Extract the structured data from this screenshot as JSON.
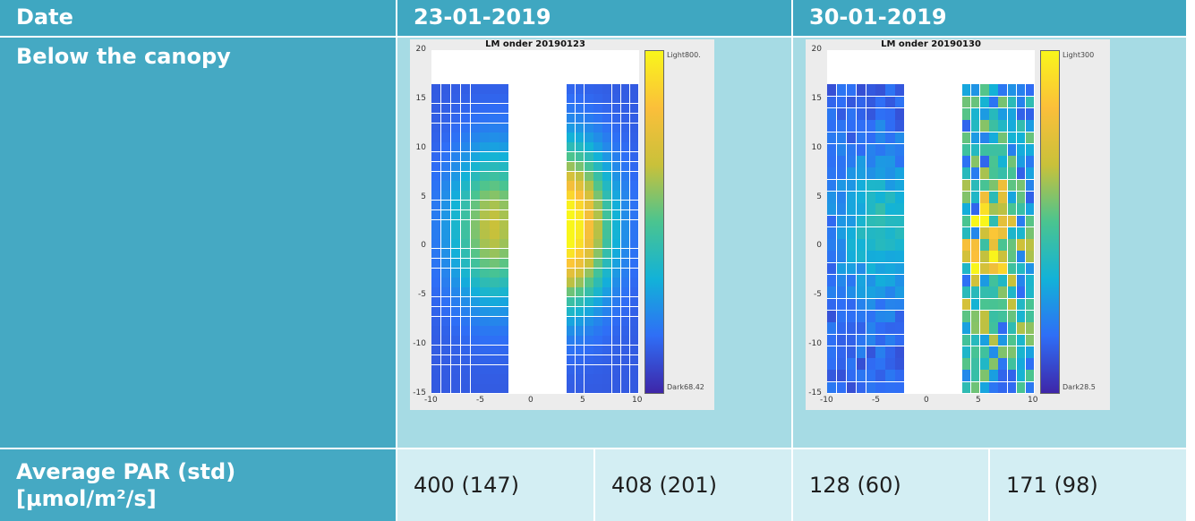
{
  "table": {
    "header": {
      "col0": "Date",
      "col1": "23-01-2019",
      "col2": "30-01-2019"
    },
    "row1_label": "Below the canopy",
    "row2_label_line1": "Average PAR (std)",
    "row2_label_line2": "[µmol/m²/s]",
    "values": [
      "400 (147)",
      "408 (201)",
      "128 (60)",
      "171 (98)"
    ]
  },
  "chart_data": [
    {
      "type": "heatmap",
      "title": "LM onder 20190123",
      "x_ticks": [
        "-10",
        "-5",
        "0",
        "5",
        "10"
      ],
      "y_ticks": [
        "20",
        "15",
        "10",
        "5",
        "0",
        "-5",
        "-10",
        "-15"
      ],
      "xlim": [
        -10,
        10
      ],
      "ylim": [
        -15,
        20
      ],
      "colorbar_top_label": "Light800.",
      "colorbar_bottom_label": "Dark68.42",
      "colormap": [
        "#3e26a8",
        "#2f6ef6",
        "#12b2d8",
        "#4ac490",
        "#c9c13a",
        "#fbbf3a",
        "#f9f61b"
      ],
      "blocks": [
        {
          "x_range": [
            -10,
            -2.5
          ],
          "y_range": [
            -15,
            16.5
          ],
          "cols": 8,
          "rows": 32,
          "pattern": "smooth",
          "peak_x": -4,
          "peak_y": 2,
          "peak": 0.55
        },
        {
          "x_range": [
            3,
            10
          ],
          "y_range": [
            -15,
            16.5
          ],
          "cols": 8,
          "rows": 32,
          "pattern": "smooth",
          "peak_x": 3,
          "peak_y": 2,
          "peak": 0.95
        }
      ],
      "average_par": [
        "400 (147)",
        "408 (201)"
      ]
    },
    {
      "type": "heatmap",
      "title": "LM onder 20190130",
      "x_ticks": [
        "-10",
        "-5",
        "0",
        "5",
        "10"
      ],
      "y_ticks": [
        "20",
        "15",
        "10",
        "5",
        "0",
        "-5",
        "-10",
        "-15"
      ],
      "xlim": [
        -10,
        10
      ],
      "ylim": [
        -15,
        20
      ],
      "colorbar_top_label": "Light300",
      "colorbar_bottom_label": "Dark28.5",
      "colormap": [
        "#3e26a8",
        "#2f6ef6",
        "#12b2d8",
        "#4ac490",
        "#c9c13a",
        "#fbbf3a",
        "#f9f61b"
      ],
      "blocks": [
        {
          "x_range": [
            -10,
            -2.5
          ],
          "y_range": [
            -15,
            16.5
          ],
          "cols": 8,
          "rows": 26,
          "pattern": "low",
          "peak_x": -5,
          "peak_y": 2,
          "peak": 0.3
        },
        {
          "x_range": [
            3,
            10
          ],
          "y_range": [
            -15,
            16.5
          ],
          "cols": 8,
          "rows": 26,
          "pattern": "noisy",
          "peak_x": 5,
          "peak_y": 0,
          "peak": 0.85
        }
      ],
      "average_par": [
        "128 (60)",
        "171 (98)"
      ]
    }
  ]
}
